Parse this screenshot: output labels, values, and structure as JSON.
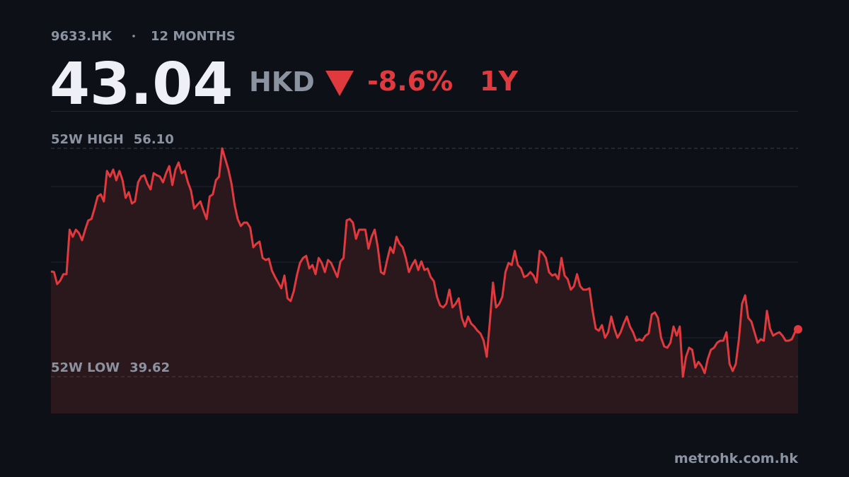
{
  "header": {
    "ticker": "9633.HK",
    "period": "12 MONTHS",
    "price": 43.04,
    "currency": "HKD",
    "change": {
      "value": -8.6,
      "label": "-8.6%"
    },
    "range": "1Y"
  },
  "chart_data": {
    "type": "line",
    "color": "#e0393e",
    "values": [
      47.22,
      47.17,
      46.3,
      46.56,
      47.02,
      47.02,
      50.23,
      49.72,
      50.23,
      49.98,
      49.47,
      50.23,
      50.9,
      51.0,
      51.76,
      52.63,
      52.78,
      52.27,
      54.47,
      54.06,
      54.57,
      53.8,
      54.47,
      53.8,
      52.53,
      52.94,
      52.12,
      52.27,
      53.65,
      54.06,
      54.16,
      53.55,
      53.14,
      54.31,
      54.16,
      54.06,
      53.65,
      54.31,
      54.82,
      53.45,
      54.57,
      55.08,
      54.31,
      54.47,
      53.65,
      53.04,
      51.76,
      52.02,
      52.27,
      51.61,
      51.0,
      52.63,
      52.78,
      53.8,
      54.06,
      56.1,
      55.33,
      54.57,
      53.55,
      52.02,
      51.0,
      50.49,
      50.74,
      50.74,
      50.39,
      48.96,
      49.21,
      49.37,
      48.19,
      48.04,
      48.14,
      47.27,
      46.81,
      46.41,
      46.0,
      46.92,
      45.28,
      45.08,
      45.79,
      46.92,
      47.83,
      48.19,
      48.34,
      47.43,
      47.68,
      47.02,
      48.19,
      47.83,
      47.17,
      48.04,
      47.83,
      47.32,
      46.81,
      47.94,
      48.19,
      50.9,
      51.0,
      50.74,
      49.57,
      50.23,
      50.23,
      50.23,
      48.86,
      49.72,
      50.23,
      48.96,
      47.17,
      47.02,
      48.04,
      48.96,
      48.55,
      49.72,
      49.21,
      48.96,
      48.19,
      47.17,
      47.68,
      48.04,
      47.32,
      47.94,
      47.32,
      47.43,
      46.81,
      46.51,
      45.39,
      44.77,
      44.62,
      44.88,
      45.9,
      44.62,
      44.88,
      45.28,
      43.86,
      43.24,
      43.96,
      43.45,
      43.24,
      42.94,
      42.73,
      42.22,
      41.05,
      43.6,
      46.41,
      44.62,
      44.88,
      45.39,
      47.17,
      47.83,
      47.68,
      48.7,
      47.68,
      47.43,
      46.81,
      46.92,
      47.17,
      46.92,
      46.41,
      48.7,
      48.55,
      48.19,
      47.17,
      46.92,
      47.02,
      46.66,
      48.19,
      46.92,
      46.66,
      45.9,
      46.15,
      47.02,
      46.15,
      45.9,
      45.9,
      46.0,
      44.37,
      43.09,
      42.94,
      43.34,
      42.43,
      42.83,
      43.96,
      43.09,
      42.43,
      42.83,
      43.45,
      43.96,
      43.24,
      42.83,
      42.22,
      42.32,
      42.22,
      42.58,
      42.73,
      44.11,
      44.26,
      43.86,
      42.43,
      41.81,
      41.71,
      42.07,
      43.24,
      42.58,
      43.24,
      39.62,
      41.05,
      41.71,
      41.56,
      40.28,
      40.69,
      40.39,
      39.88,
      40.9,
      41.56,
      41.71,
      42.07,
      42.22,
      42.22,
      42.83,
      40.54,
      40.03,
      40.54,
      42.32,
      44.88,
      45.49,
      43.86,
      43.6,
      42.83,
      42.07,
      42.32,
      42.22,
      44.37,
      43.09,
      42.58,
      42.73,
      42.83,
      42.58,
      42.22,
      42.22,
      42.32,
      42.83,
      43.04
    ],
    "ylim": [
      36.97,
      58.8
    ],
    "reference_lines": [
      {
        "name": "52W HIGH",
        "value": 56.1,
        "label": "56.10"
      },
      {
        "name": "52W LOW",
        "value": 39.62,
        "label": "39.62"
      }
    ]
  },
  "footer": "metrohk.com.hk"
}
